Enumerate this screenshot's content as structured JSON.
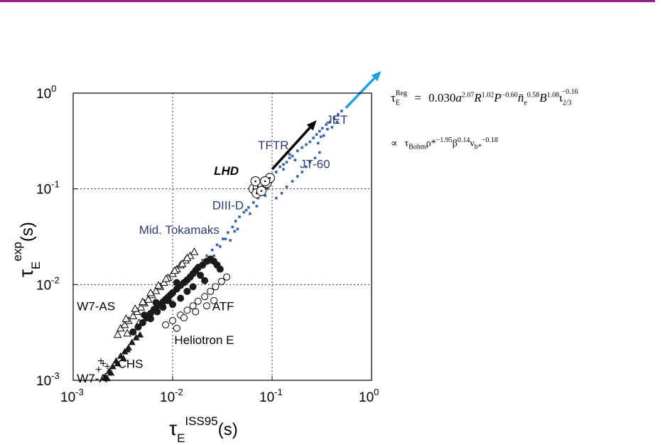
{
  "chart_data": {
    "type": "scatter",
    "x_scale": "log",
    "y_scale": "log",
    "xlim": [
      0.001,
      1
    ],
    "ylim": [
      0.001,
      1
    ],
    "x_ticks": [
      "10",
      "10",
      "10",
      "10"
    ],
    "x_tick_exponents": [
      "-3",
      "-2",
      "-1",
      "0"
    ],
    "y_ticks": [
      "10",
      "10",
      "10",
      "10"
    ],
    "y_tick_exponents": [
      "-3",
      "-2",
      "-1",
      "0"
    ],
    "xlabel": {
      "symbol": "τ",
      "sub": "E",
      "sup": "ISS95",
      "unit": "(s)"
    },
    "ylabel": {
      "symbol": "τ",
      "sub": "E",
      "sup": "exp",
      "unit": "(s)"
    },
    "grid": "dotted at decades",
    "annotations": [
      {
        "text": "JET",
        "x": 0.35,
        "y": 0.48,
        "color": "#2e3a7a"
      },
      {
        "text": "TFTR",
        "x": 0.072,
        "y": 0.26,
        "color": "#2e3a7a"
      },
      {
        "text": "JT-60",
        "x": 0.19,
        "y": 0.165,
        "color": "#2e3a7a"
      },
      {
        "text": "LHD",
        "x": 0.026,
        "y": 0.14,
        "color": "#000000"
      },
      {
        "text": "DIII-D",
        "x": 0.025,
        "y": 0.061,
        "color": "#2e3a7a"
      },
      {
        "text": "Mid. Tokamaks",
        "x": 0.0046,
        "y": 0.034,
        "color": "#2e3a7a"
      },
      {
        "text": "W7-AS",
        "x": 0.00109,
        "y": 0.0054,
        "color": "#000000"
      },
      {
        "text": "ATF",
        "x": 0.025,
        "y": 0.0054,
        "color": "#000000"
      },
      {
        "text": "Heliotron E",
        "x": 0.0104,
        "y": 0.0024,
        "color": "#000000"
      },
      {
        "text": "CHS",
        "x": 0.0028,
        "y": 0.00135,
        "color": "#000000"
      },
      {
        "text": "W7-A",
        "x": 0.00109,
        "y": 0.00095,
        "color": "#000000"
      }
    ],
    "series": [
      {
        "name": "JET",
        "marker": "square",
        "color": "#3b64a8",
        "x": [
          0.46,
          0.42,
          0.38,
          0.35,
          0.32,
          0.3,
          0.28,
          0.26,
          0.24,
          0.22,
          0.5,
          0.45,
          0.4,
          0.36,
          0.33,
          0.31,
          0.29
        ],
        "y": [
          0.6,
          0.55,
          0.5,
          0.47,
          0.43,
          0.4,
          0.37,
          0.34,
          0.31,
          0.29,
          0.65,
          0.5,
          0.44,
          0.42,
          0.36,
          0.35,
          0.3
        ]
      },
      {
        "name": "TFTR",
        "marker": "square",
        "color": "#3b64a8",
        "x": [
          0.2,
          0.18,
          0.16,
          0.15,
          0.14,
          0.13,
          0.12,
          0.11,
          0.1,
          0.095,
          0.17,
          0.15,
          0.13
        ],
        "y": [
          0.27,
          0.25,
          0.22,
          0.21,
          0.19,
          0.18,
          0.17,
          0.15,
          0.14,
          0.13,
          0.2,
          0.23,
          0.16
        ]
      },
      {
        "name": "JT-60",
        "marker": "square",
        "color": "#3b64a8",
        "x": [
          0.3,
          0.27,
          0.24,
          0.22,
          0.2,
          0.18,
          0.16,
          0.14,
          0.125,
          0.11
        ],
        "y": [
          0.24,
          0.21,
          0.19,
          0.17,
          0.15,
          0.135,
          0.12,
          0.105,
          0.09,
          0.08
        ]
      },
      {
        "name": "DIII-D",
        "marker": "square",
        "color": "#3b64a8",
        "x": [
          0.09,
          0.08,
          0.072,
          0.065,
          0.058,
          0.052,
          0.047,
          0.043,
          0.06,
          0.055,
          0.07,
          0.085
        ],
        "y": [
          0.1,
          0.09,
          0.08,
          0.072,
          0.064,
          0.057,
          0.051,
          0.046,
          0.055,
          0.06,
          0.066,
          0.085
        ]
      },
      {
        "name": "Mid. Tokamaks",
        "marker": "square",
        "color": "#3b64a8",
        "x": [
          0.04,
          0.036,
          0.032,
          0.028,
          0.025,
          0.022,
          0.02,
          0.018,
          0.03,
          0.034,
          0.038,
          0.042,
          0.045,
          0.026,
          0.024
        ],
        "y": [
          0.04,
          0.035,
          0.03,
          0.026,
          0.023,
          0.02,
          0.018,
          0.016,
          0.025,
          0.03,
          0.029,
          0.036,
          0.038,
          0.02,
          0.017
        ]
      },
      {
        "name": "LHD",
        "marker": "open-circle-dot",
        "color": "#000000",
        "x": [
          0.065,
          0.072,
          0.08,
          0.088,
          0.095,
          0.07,
          0.078,
          0.085,
          0.068
        ],
        "y": [
          0.1,
          0.105,
          0.11,
          0.115,
          0.13,
          0.09,
          0.095,
          0.12,
          0.12
        ]
      },
      {
        "name": "W7-AS",
        "marker": "open-triangle",
        "color": "#000000",
        "x": [
          0.0028,
          0.003,
          0.0033,
          0.0036,
          0.004,
          0.0044,
          0.0048,
          0.0052,
          0.0057,
          0.0062,
          0.0068,
          0.0075,
          0.0082,
          0.009,
          0.01,
          0.011,
          0.012,
          0.0135,
          0.015,
          0.0165,
          0.0034,
          0.0042,
          0.005,
          0.006,
          0.0072,
          0.0086,
          0.0105,
          0.0125,
          0.014,
          0.0035,
          0.0046
        ],
        "y": [
          0.003,
          0.0035,
          0.0038,
          0.0042,
          0.0047,
          0.0052,
          0.0058,
          0.0064,
          0.007,
          0.0078,
          0.0086,
          0.0095,
          0.0105,
          0.0118,
          0.013,
          0.0145,
          0.016,
          0.018,
          0.02,
          0.022,
          0.0044,
          0.0056,
          0.0066,
          0.0082,
          0.0098,
          0.0115,
          0.014,
          0.0165,
          0.019,
          0.0031,
          0.004
        ]
      },
      {
        "name": "ATF",
        "marker": "filled-circle",
        "color": "#1a1a1a",
        "x": [
          0.004,
          0.0045,
          0.005,
          0.0055,
          0.006,
          0.0065,
          0.007,
          0.0075,
          0.008,
          0.0085,
          0.009,
          0.0095,
          0.01,
          0.011,
          0.012,
          0.013,
          0.014,
          0.015,
          0.016,
          0.017,
          0.018,
          0.02,
          0.022,
          0.024,
          0.026,
          0.028,
          0.03,
          0.007,
          0.008,
          0.009,
          0.01,
          0.012,
          0.014,
          0.016,
          0.006,
          0.0052,
          0.0068,
          0.011,
          0.019,
          0.021
        ],
        "y": [
          0.0032,
          0.0036,
          0.004,
          0.0045,
          0.005,
          0.0055,
          0.006,
          0.0062,
          0.0066,
          0.007,
          0.0074,
          0.0078,
          0.0082,
          0.009,
          0.0098,
          0.0105,
          0.0112,
          0.012,
          0.013,
          0.014,
          0.015,
          0.016,
          0.0175,
          0.0185,
          0.0175,
          0.016,
          0.0145,
          0.0052,
          0.0058,
          0.0068,
          0.0062,
          0.0072,
          0.0085,
          0.0095,
          0.0044,
          0.0048,
          0.0065,
          0.0105,
          0.0125,
          0.011
        ]
      },
      {
        "name": "Heliotron E",
        "marker": "open-circle",
        "color": "#000000",
        "x": [
          0.0085,
          0.01,
          0.012,
          0.014,
          0.016,
          0.018,
          0.021,
          0.024,
          0.027,
          0.031,
          0.035,
          0.013,
          0.017,
          0.022,
          0.026,
          0.011
        ],
        "y": [
          0.0038,
          0.0042,
          0.0048,
          0.0054,
          0.006,
          0.0067,
          0.0075,
          0.0085,
          0.0095,
          0.0108,
          0.012,
          0.0045,
          0.0052,
          0.006,
          0.0068,
          0.0035
        ]
      },
      {
        "name": "CHS",
        "marker": "filled-triangle",
        "color": "#1a1a1a",
        "x": [
          0.0021,
          0.0023,
          0.0025,
          0.0027,
          0.003,
          0.0033,
          0.0036,
          0.0039,
          0.0043,
          0.0047,
          0.0024,
          0.0028,
          0.0032,
          0.0035,
          0.0022
        ],
        "y": [
          0.0011,
          0.00125,
          0.0014,
          0.0016,
          0.0018,
          0.002,
          0.0022,
          0.0025,
          0.0028,
          0.003,
          0.0012,
          0.0015,
          0.0017,
          0.0021,
          0.00105
        ]
      },
      {
        "name": "W7-A",
        "marker": "plus",
        "color": "#000000",
        "x": [
          0.0018,
          0.002,
          0.0022,
          0.0019
        ],
        "y": [
          0.0013,
          0.0015,
          0.0014,
          0.0016
        ]
      }
    ],
    "arrows": [
      {
        "from": [
          0.1,
          0.16
        ],
        "to": [
          0.28,
          0.52
        ],
        "color": "#000000"
      },
      {
        "from": [
          0.55,
          0.7
        ],
        "to": [
          1.25,
          1.7
        ],
        "color": "#1ea0e6"
      }
    ]
  },
  "equations": {
    "line1": {
      "lhs": "τ",
      "lhs_sub": "E",
      "lhs_sup": "Reg",
      "eq": "=",
      "coef": "0.030",
      "terms": [
        {
          "base": "a",
          "exp": "2.07"
        },
        {
          "base": "R",
          "exp": "1.02"
        },
        {
          "base": "P",
          "exp": "−0.60"
        },
        {
          "base": "n̄",
          "sub": "e",
          "exp": "0.58"
        },
        {
          "base": "B",
          "exp": "1.08"
        },
        {
          "base": "ι",
          "sub": "2/3",
          "exp": "−0.16"
        }
      ]
    },
    "line2": {
      "prop": "∝",
      "terms": [
        {
          "base": "τ",
          "sub": "Bohm"
        },
        {
          "base": "ρ*",
          "exp": "−1.95"
        },
        {
          "base": "β",
          "exp": "0.14"
        },
        {
          "base": "ν",
          "sub": "b",
          "sub2": "*",
          "exp": "−0.18"
        }
      ]
    }
  },
  "colors": {
    "top_rule": "#9b1b8e",
    "grid": "#000000",
    "tokamak_points": "#3b64a8",
    "tokamak_label": "#2e3a7a",
    "blue_arrow": "#1ea0e6"
  }
}
